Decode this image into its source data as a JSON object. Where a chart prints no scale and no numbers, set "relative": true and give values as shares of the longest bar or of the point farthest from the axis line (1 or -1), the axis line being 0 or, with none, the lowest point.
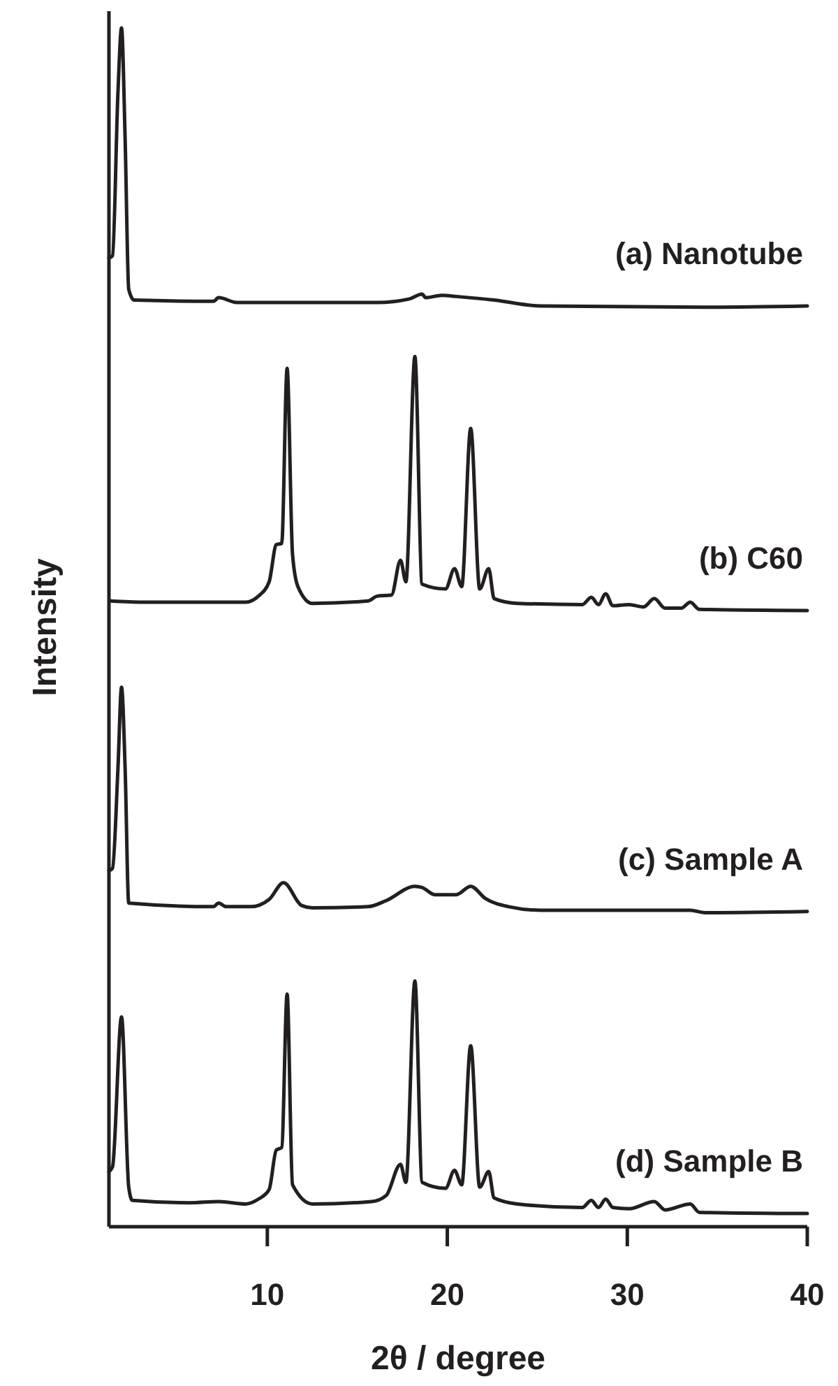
{
  "chart_data": {
    "type": "line",
    "relative": true,
    "xlabel": "2θ / degree",
    "ylabel": "Intensity",
    "xlim": [
      1.2,
      40
    ],
    "xticks": [
      10,
      20,
      30,
      40
    ],
    "series": [
      {
        "name": "(a) Nanotube",
        "color": "#231f20",
        "x": [
          1.2,
          1.4,
          1.7,
          1.9,
          2.1,
          2.3,
          2.6,
          7.0,
          7.3,
          8.3,
          16.1,
          17.9,
          18.6,
          18.8,
          19.7,
          20.5,
          22.6,
          25.2,
          34.3,
          40.0
        ],
        "values": [
          0.808,
          0.81,
          0.946,
          1.0,
          0.907,
          0.782,
          0.773,
          0.772,
          0.775,
          0.771,
          0.771,
          0.774,
          0.778,
          0.775,
          0.777,
          0.776,
          0.773,
          0.768,
          0.767,
          0.768
        ]
      },
      {
        "name": "(b) C60",
        "color": "#231f20",
        "x": [
          1.3,
          3.1,
          8.8,
          9.5,
          10.1,
          10.5,
          10.8,
          11.1,
          11.4,
          11.7,
          12.5,
          15.6,
          16.1,
          16.9,
          17.4,
          17.7,
          18.2,
          18.6,
          19.9,
          20.4,
          20.8,
          21.3,
          21.8,
          22.3,
          22.6,
          23.9,
          27.5,
          28.0,
          28.4,
          28.8,
          29.2,
          30.1,
          30.9,
          31.5,
          32.1,
          33.0,
          33.5,
          34.0,
          40.0
        ],
        "values": [
          0.522,
          0.521,
          0.521,
          0.526,
          0.538,
          0.569,
          0.57,
          0.716,
          0.561,
          0.534,
          0.52,
          0.522,
          0.526,
          0.527,
          0.556,
          0.538,
          0.726,
          0.536,
          0.532,
          0.549,
          0.534,
          0.666,
          0.532,
          0.549,
          0.524,
          0.52,
          0.519,
          0.525,
          0.519,
          0.528,
          0.518,
          0.519,
          0.517,
          0.524,
          0.516,
          0.516,
          0.521,
          0.515,
          0.514
        ]
      },
      {
        "name": "(c) Sample A",
        "color": "#231f20",
        "x": [
          1.2,
          1.4,
          1.7,
          1.9,
          2.1,
          2.3,
          7.0,
          7.3,
          7.7,
          9.1,
          10.1,
          10.9,
          11.9,
          12.5,
          15.6,
          16.6,
          18.2,
          18.6,
          19.3,
          20.5,
          21.3,
          22.1,
          23.4,
          25.2,
          33.5,
          34.3,
          40.0
        ],
        "values": [
          0.297,
          0.299,
          0.382,
          0.45,
          0.382,
          0.27,
          0.267,
          0.27,
          0.267,
          0.267,
          0.273,
          0.287,
          0.268,
          0.266,
          0.267,
          0.272,
          0.284,
          0.283,
          0.277,
          0.277,
          0.284,
          0.274,
          0.267,
          0.264,
          0.264,
          0.262,
          0.263
        ]
      },
      {
        "name": "(d) Sample B",
        "color": "#231f20",
        "x": [
          1.2,
          1.4,
          1.9,
          2.3,
          2.5,
          5.7,
          7.3,
          8.8,
          9.5,
          10.1,
          10.5,
          10.8,
          11.1,
          11.4,
          12.5,
          15.8,
          16.6,
          17.4,
          17.7,
          18.2,
          18.6,
          19.9,
          20.4,
          20.8,
          21.3,
          21.8,
          22.3,
          22.6,
          23.9,
          27.5,
          28.0,
          28.4,
          28.8,
          29.2,
          30.1,
          31.5,
          32.1,
          33.5,
          34.0,
          40.0
        ],
        "values": [
          0.046,
          0.05,
          0.175,
          0.033,
          0.022,
          0.02,
          0.021,
          0.019,
          0.023,
          0.031,
          0.064,
          0.066,
          0.194,
          0.035,
          0.019,
          0.021,
          0.026,
          0.052,
          0.037,
          0.205,
          0.037,
          0.032,
          0.047,
          0.035,
          0.151,
          0.033,
          0.046,
          0.024,
          0.019,
          0.016,
          0.022,
          0.016,
          0.023,
          0.016,
          0.015,
          0.021,
          0.014,
          0.019,
          0.012,
          0.011
        ]
      }
    ]
  }
}
